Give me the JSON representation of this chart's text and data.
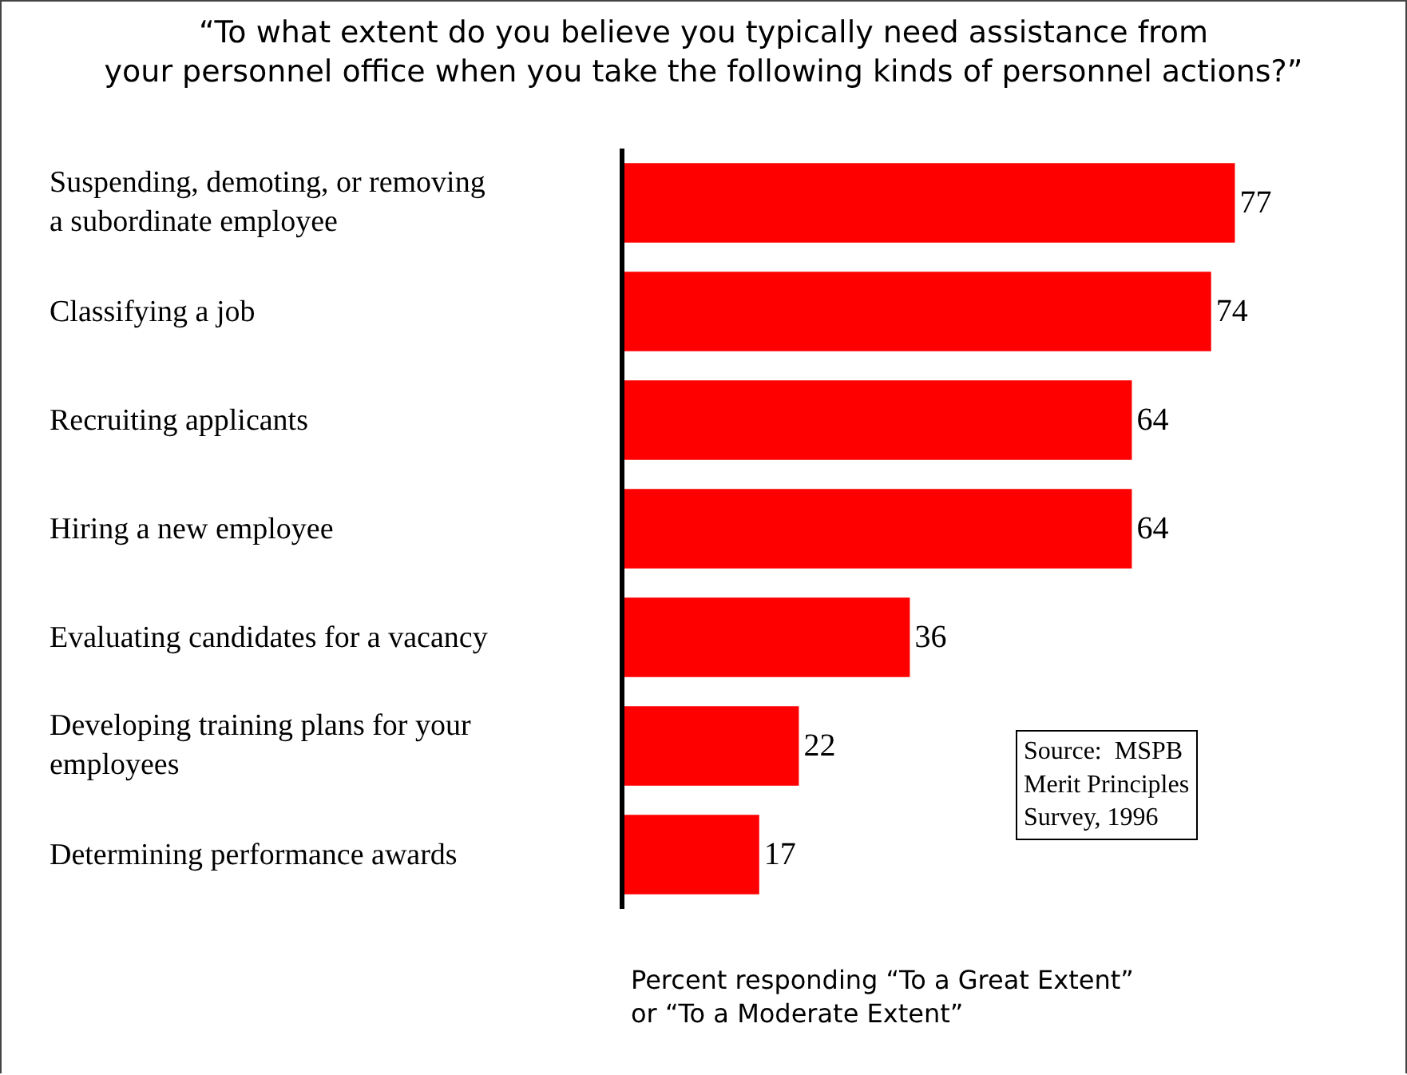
{
  "chart_data": {
    "type": "bar",
    "orientation": "horizontal",
    "title": "“To what extent do you believe you typically need assistance from\nyour personnel office when you take the following kinds of personnel actions?”",
    "xlabel": "Percent responding “To a Great Extent”\nor “To a Moderate Extent”",
    "categories": [
      "Suspending, demoting, or removing\na subordinate employee",
      "Classifying a job",
      "Recruiting applicants",
      "Hiring a new employee",
      "Evaluating candidates for a vacancy",
      "Developing training plans for your\nemployees",
      "Determining performance awards"
    ],
    "values": [
      77,
      74,
      64,
      64,
      36,
      22,
      17
    ],
    "color": "#ff0000",
    "data_labels": true,
    "annotations": [
      "Source:  MSPB\nMerit Principles\nSurvey, 1996"
    ]
  }
}
